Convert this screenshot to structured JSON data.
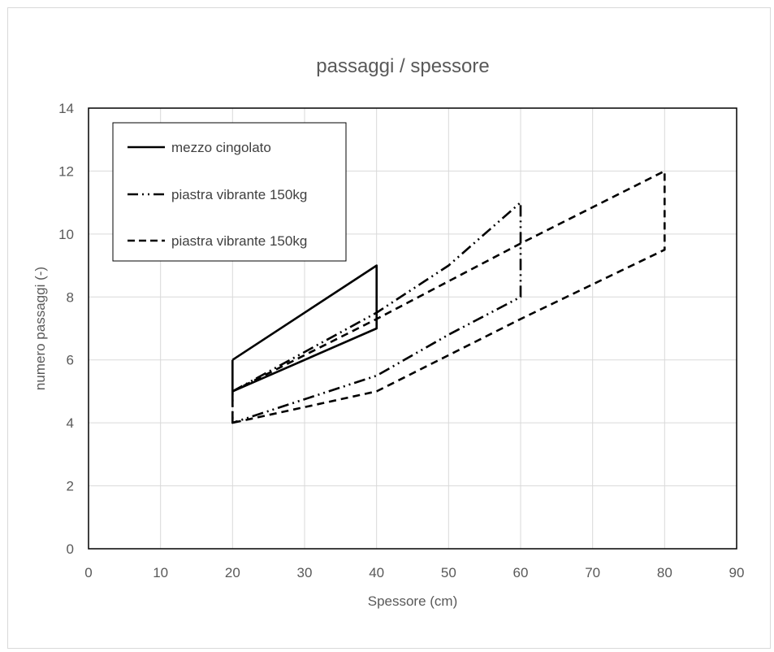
{
  "chart_data": {
    "type": "line",
    "title": "passaggi / spessore",
    "xlabel": "Spessore (cm)",
    "ylabel": "numero passaggi (-)",
    "xlim": [
      0,
      90
    ],
    "ylim": [
      0,
      14
    ],
    "x_ticks": [
      "0",
      "10",
      "20",
      "30",
      "40",
      "50",
      "60",
      "70",
      "80",
      "90"
    ],
    "y_ticks": [
      "0",
      "2",
      "4",
      "6",
      "8",
      "10",
      "12",
      "14"
    ],
    "grid": true,
    "legend_position": "top-left",
    "series": [
      {
        "name": "mezzo cingolato",
        "style": "solid",
        "color": "#000000",
        "points": [
          [
            20,
            6
          ],
          [
            40,
            9
          ],
          [
            40,
            7
          ],
          [
            20,
            5
          ],
          [
            20,
            6
          ]
        ]
      },
      {
        "name": "piastra vibrante 150kg",
        "style": "dash-dot-dot",
        "color": "#000000",
        "points": [
          [
            20,
            5
          ],
          [
            40,
            7.5
          ],
          [
            50,
            9
          ],
          [
            60,
            11
          ],
          [
            60,
            8
          ],
          [
            50,
            6.8
          ],
          [
            40,
            5.5
          ],
          [
            20,
            4
          ],
          [
            20,
            5
          ]
        ]
      },
      {
        "name": "piastra vibrante 150kg",
        "style": "dash",
        "color": "#000000",
        "points": [
          [
            20,
            5
          ],
          [
            40,
            7.3
          ],
          [
            60,
            9.7
          ],
          [
            80,
            12
          ],
          [
            80,
            9.5
          ],
          [
            60,
            7.3
          ],
          [
            40,
            5
          ],
          [
            30,
            4.5
          ],
          [
            20,
            4
          ],
          [
            20,
            5
          ]
        ]
      }
    ]
  }
}
